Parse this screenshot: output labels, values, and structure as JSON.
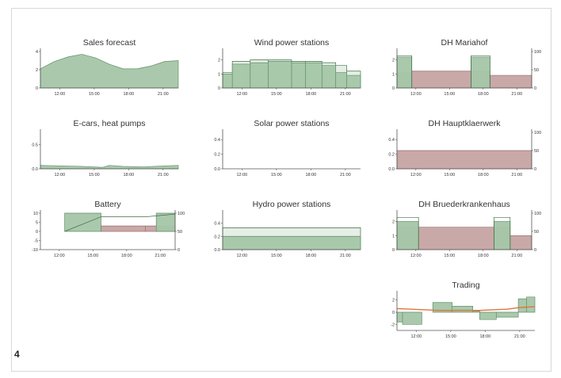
{
  "figure_number": "4",
  "colors": {
    "green_fill": "#a5c6a8",
    "green_dark": "#5f8d66",
    "green_line": "#3f6f47",
    "red_fill": "#c6a3a3",
    "red_line": "#9a6e6e",
    "light_fill": "#e6eee6",
    "orange": "#e0763a",
    "axis": "#555555"
  },
  "chart_data": [
    {
      "id": "sales-forecast",
      "type": "area",
      "title": "Sales forecast",
      "x_ticks": [
        "12:00",
        "15:00",
        "18:00",
        "21:00"
      ],
      "y_ticks": [
        "0",
        "2",
        "4"
      ],
      "ylim": [
        0,
        4
      ],
      "series": [
        {
          "kind": "area",
          "style": "green",
          "x": [
            0,
            0.1,
            0.2,
            0.3,
            0.4,
            0.5,
            0.6,
            0.7,
            0.8,
            0.9,
            1
          ],
          "values": [
            2.1,
            2.9,
            3.4,
            3.7,
            3.3,
            2.6,
            2.1,
            2.1,
            2.4,
            2.9,
            3.0
          ]
        }
      ]
    },
    {
      "id": "wind-power",
      "type": "area",
      "title": "Wind power stations",
      "x_ticks": [
        "12:00",
        "15:00",
        "18:00",
        "21:00"
      ],
      "y_ticks": [
        "0",
        "1",
        "2"
      ],
      "ylim": [
        0,
        2.6
      ],
      "series": [
        {
          "kind": "step",
          "style": "light",
          "x": [
            0,
            0.07,
            0.2,
            0.33,
            0.5,
            0.6,
            0.72,
            0.82,
            0.9,
            1
          ],
          "values": [
            1.1,
            1.9,
            2.0,
            2.0,
            1.9,
            1.9,
            1.8,
            1.6,
            1.2,
            1.0
          ]
        },
        {
          "kind": "step",
          "style": "green",
          "x": [
            0,
            0.07,
            0.2,
            0.33,
            0.5,
            0.6,
            0.72,
            0.82,
            0.9,
            1
          ],
          "values": [
            1.0,
            1.7,
            1.8,
            1.9,
            1.8,
            1.8,
            1.6,
            1.1,
            0.9,
            0.5
          ]
        }
      ]
    },
    {
      "id": "dh-mariahof",
      "type": "area",
      "title": "DH Mariahof",
      "x_ticks": [
        "12:00",
        "15:00",
        "18:00",
        "21:00"
      ],
      "y_ticks": [
        "0",
        "1",
        "2"
      ],
      "y2_ticks": [
        "0",
        "50",
        "100"
      ],
      "ylim": [
        0,
        2.6
      ],
      "series": [
        {
          "kind": "step",
          "style": "red",
          "x": [
            0,
            0.11,
            0.55,
            0.69,
            1
          ],
          "values": [
            1.1,
            1.2,
            1.2,
            0.9,
            0.9
          ]
        },
        {
          "kind": "step",
          "style": "green",
          "x": [
            0,
            0.11,
            0.55,
            0.69,
            1
          ],
          "values": [
            2.2,
            0,
            2.2,
            0,
            0
          ]
        },
        {
          "kind": "step",
          "style": "outline",
          "x": [
            0,
            0.11,
            0.55,
            0.69,
            1
          ],
          "values": [
            2.3,
            0,
            2.3,
            0,
            0
          ]
        }
      ]
    },
    {
      "id": "ecars-heatpumps",
      "type": "area",
      "title": "E-cars, heat pumps",
      "x_ticks": [
        "12:00",
        "15:00",
        "18:00",
        "21:00"
      ],
      "y_ticks": [
        "0.0",
        "0.5"
      ],
      "ylim": [
        0,
        0.75
      ],
      "series": [
        {
          "kind": "area",
          "style": "green",
          "x": [
            0,
            0.15,
            0.3,
            0.45,
            0.5,
            0.6,
            0.75,
            0.9,
            1
          ],
          "values": [
            0.07,
            0.06,
            0.05,
            0.03,
            0.07,
            0.05,
            0.04,
            0.06,
            0.07
          ]
        }
      ]
    },
    {
      "id": "solar-power",
      "type": "area",
      "title": "Solar power stations",
      "x_ticks": [
        "12:00",
        "15:00",
        "18:00",
        "21:00"
      ],
      "y_ticks": [
        "0.0",
        "0.2",
        "0.4"
      ],
      "ylim": [
        0,
        0.5
      ],
      "series": []
    },
    {
      "id": "dh-hauptklaerwerk",
      "type": "area",
      "title": "DH Hauptklaerwerk",
      "x_ticks": [
        "12:00",
        "15:00",
        "18:00",
        "21:00"
      ],
      "y_ticks": [
        "0.0",
        "0.2",
        "0.4"
      ],
      "y2_ticks": [
        "0",
        "50",
        "100"
      ],
      "ylim": [
        0,
        0.5
      ],
      "series": [
        {
          "kind": "step",
          "style": "red",
          "x": [
            0,
            1
          ],
          "values": [
            0.25,
            0.25
          ]
        }
      ]
    },
    {
      "id": "battery",
      "type": "area",
      "title": "Battery",
      "x_ticks": [
        "12:00",
        "15:00",
        "18:00",
        "21:00"
      ],
      "y_ticks": [
        "-10",
        "-5",
        "0",
        "5",
        "10"
      ],
      "y2_ticks": [
        "0",
        "50",
        "100"
      ],
      "ylim": [
        -10,
        10
      ],
      "series": [
        {
          "kind": "step",
          "style": "red",
          "x": [
            0,
            0.18,
            0.45,
            0.78,
            1
          ],
          "values": [
            0,
            0,
            3.0,
            3.0,
            3.0
          ]
        },
        {
          "kind": "step",
          "style": "green",
          "x": [
            0,
            0.18,
            0.45,
            0.78,
            0.86,
            1
          ],
          "values": [
            0,
            10,
            0,
            0,
            10,
            10
          ]
        },
        {
          "kind": "line",
          "style": "green_line",
          "x": [
            0.18,
            0.45,
            0.78,
            1
          ],
          "values": [
            0,
            8.0,
            8.0,
            9.5
          ]
        }
      ]
    },
    {
      "id": "hydro-power",
      "type": "area",
      "title": "Hydro power stations",
      "x_ticks": [
        "12:00",
        "15:00",
        "18:00",
        "21:00"
      ],
      "y_ticks": [
        "0.0",
        "0.2",
        "0.4"
      ],
      "ylim": [
        0,
        0.55
      ],
      "series": [
        {
          "kind": "step",
          "style": "light",
          "x": [
            0,
            1
          ],
          "values": [
            0.33,
            0.33
          ]
        },
        {
          "kind": "step",
          "style": "green",
          "x": [
            0,
            1
          ],
          "values": [
            0.2,
            0.2
          ]
        }
      ]
    },
    {
      "id": "dh-bruederkrankenhaus",
      "type": "area",
      "title": "DH Bruederkrankenhaus",
      "x_ticks": [
        "12:00",
        "15:00",
        "18:00",
        "21:00"
      ],
      "y_ticks": [
        "0",
        "1",
        "2"
      ],
      "y2_ticks": [
        "0",
        "50",
        "100"
      ],
      "ylim": [
        0,
        2.6
      ],
      "series": [
        {
          "kind": "step",
          "style": "red",
          "x": [
            0,
            0.16,
            0.72,
            0.84,
            1
          ],
          "values": [
            1.6,
            1.6,
            1.6,
            1.0,
            1.0
          ]
        },
        {
          "kind": "step",
          "style": "green",
          "x": [
            0,
            0.16,
            0.72,
            0.84,
            1
          ],
          "values": [
            2.0,
            0,
            2.0,
            0,
            0
          ]
        },
        {
          "kind": "step",
          "style": "outline",
          "x": [
            0,
            0.16,
            0.72,
            0.84,
            1
          ],
          "values": [
            2.3,
            0,
            2.3,
            0,
            0
          ]
        }
      ]
    },
    {
      "id": "trading",
      "type": "area",
      "title": "Trading",
      "x_ticks": [
        "12:00",
        "15:00",
        "18:00",
        "21:00"
      ],
      "y_ticks": [
        "-2",
        "0",
        "2"
      ],
      "ylim": [
        -3,
        3
      ],
      "series": [
        {
          "kind": "step",
          "style": "green",
          "x": [
            0,
            0.04,
            0.18,
            0.26,
            0.4,
            0.55,
            0.6,
            0.72,
            0.88,
            0.94,
            1
          ],
          "values": [
            -1.6,
            -2.0,
            0,
            1.6,
            1.0,
            0.2,
            -1.2,
            -0.8,
            2.2,
            2.5,
            2.6
          ]
        },
        {
          "kind": "line",
          "style": "orange",
          "x": [
            0,
            0.3,
            0.6,
            0.8,
            0.9,
            1
          ],
          "values": [
            0.6,
            0.3,
            0.3,
            0.5,
            0.8,
            0.9
          ]
        }
      ]
    }
  ]
}
